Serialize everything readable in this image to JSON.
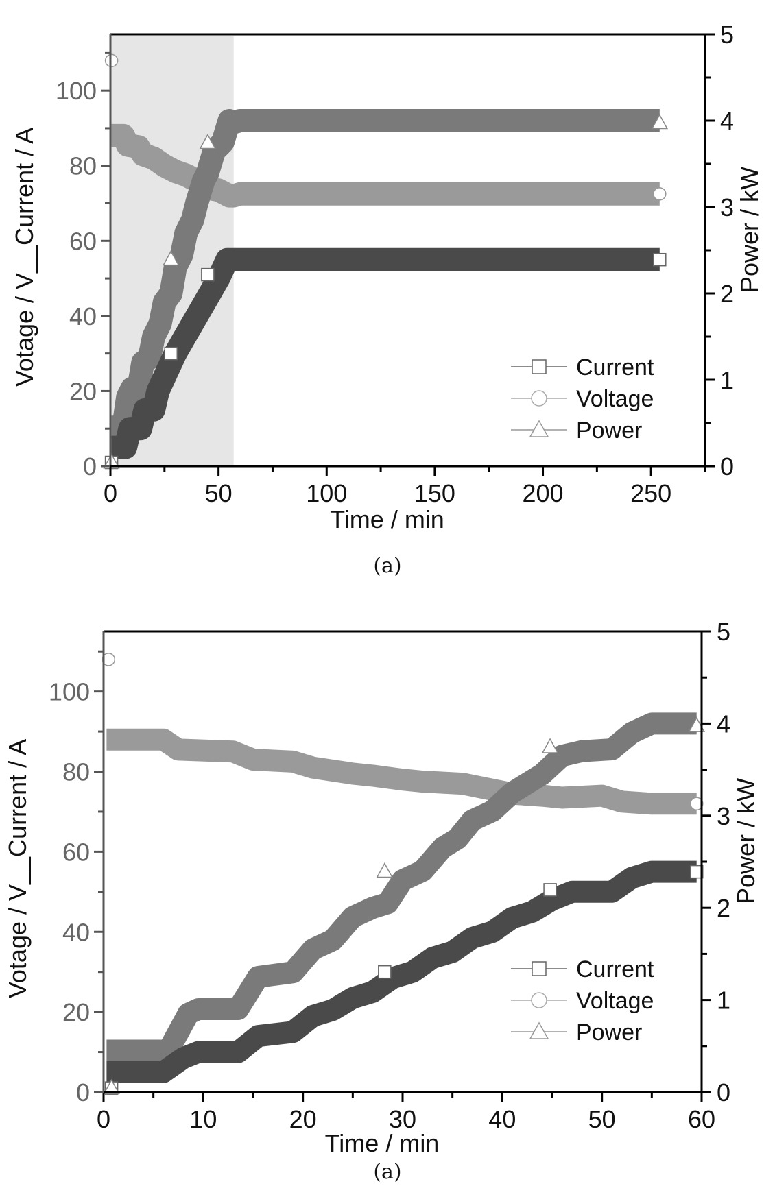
{
  "chart_data": [
    {
      "type": "line",
      "caption": "(a)",
      "xlabel": "Time / min",
      "ylabel_left": "Votage / V__Current / A",
      "ylabel_right": "Power / kW",
      "xlim": [
        0,
        275
      ],
      "ylim_left": [
        0,
        115
      ],
      "ylim_right": [
        0,
        5
      ],
      "x_ticks": [
        0,
        50,
        100,
        150,
        200,
        250
      ],
      "y_left_ticks": [
        0,
        20,
        40,
        60,
        80,
        100
      ],
      "y_right_ticks": [
        0,
        1,
        2,
        3,
        4,
        5
      ],
      "shaded_region": {
        "x": [
          0,
          57
        ],
        "color": "#e6e6e6"
      },
      "legend": {
        "position": "bottom-right",
        "entries": [
          "Current",
          "Voltage",
          "Power"
        ]
      },
      "series": [
        {
          "name": "Current",
          "axis": "left",
          "marker": "square",
          "color": "#4a4a4a",
          "x": [
            0.5,
            7,
            9,
            14,
            16,
            20,
            22,
            26,
            30,
            35,
            40,
            45,
            50,
            54,
            57,
            60,
            100,
            150,
            200,
            254
          ],
          "y": [
            5,
            5,
            10,
            10,
            15,
            15,
            20,
            25,
            30,
            35,
            40,
            45,
            50,
            55,
            55,
            55,
            55,
            55,
            55,
            55
          ],
          "marker_points": [
            {
              "x": 0.5,
              "y": 1
            },
            {
              "x": 28,
              "y": 30
            },
            {
              "x": 45,
              "y": 51
            },
            {
              "x": 254,
              "y": 55
            }
          ]
        },
        {
          "name": "Voltage",
          "axis": "left",
          "marker": "circle",
          "color": "#9a9a9a",
          "x": [
            0.5,
            6,
            8,
            13,
            15,
            20,
            25,
            30,
            35,
            40,
            45,
            50,
            55,
            57,
            60,
            100,
            150,
            200,
            254
          ],
          "y": [
            88,
            88,
            85.5,
            85,
            83,
            82,
            80,
            78.5,
            77.5,
            76,
            74,
            73.5,
            72,
            72,
            72.5,
            72.5,
            72.5,
            72.5,
            72.5
          ],
          "marker_points": [
            {
              "x": 0.5,
              "y": 108
            },
            {
              "x": 254,
              "y": 72.5
            }
          ]
        },
        {
          "name": "Power",
          "axis": "right",
          "marker": "triangle",
          "color": "#7a7a7a",
          "x": [
            0.5,
            6,
            8,
            10,
            13,
            15,
            18,
            20,
            23,
            25,
            28,
            30,
            33,
            35,
            38,
            40,
            43,
            45,
            48,
            50,
            52,
            55,
            57,
            60,
            100,
            150,
            200,
            254
          ],
          "y": [
            0.45,
            0.45,
            0.8,
            0.9,
            0.9,
            1.2,
            1.25,
            1.5,
            1.65,
            1.9,
            2.0,
            2.3,
            2.45,
            2.7,
            2.85,
            3.05,
            3.3,
            3.4,
            3.65,
            3.7,
            3.75,
            4.0,
            3.98,
            4.0,
            4.0,
            4.0,
            4.0,
            4.0
          ],
          "marker_points": [
            {
              "x": 0.5,
              "y": 0.05
            },
            {
              "x": 28,
              "y": 2.4
            },
            {
              "x": 45,
              "y": 3.75
            },
            {
              "x": 254,
              "y": 3.98
            }
          ]
        }
      ]
    },
    {
      "type": "line",
      "caption": "(a)",
      "xlabel": "Time / min",
      "ylabel_left": "Votage / V__Current / A",
      "ylabel_right": "Power / kW",
      "xlim": [
        0,
        60
      ],
      "ylim_left": [
        0,
        115
      ],
      "ylim_right": [
        0,
        5
      ],
      "x_ticks": [
        0,
        10,
        20,
        30,
        40,
        50,
        60
      ],
      "y_left_ticks": [
        0,
        20,
        40,
        60,
        80,
        100
      ],
      "y_right_ticks": [
        0,
        1,
        2,
        3,
        4,
        5
      ],
      "legend": {
        "position": "bottom-right",
        "entries": [
          "Current",
          "Voltage",
          "Power"
        ]
      },
      "series": [
        {
          "name": "Current",
          "axis": "left",
          "marker": "square",
          "color": "#4a4a4a",
          "x": [
            0.3,
            6,
            8,
            9.5,
            13.5,
            15.5,
            19,
            21,
            23,
            25,
            27,
            29,
            31,
            33,
            35,
            37,
            39,
            41,
            43,
            45,
            47,
            48,
            51,
            53,
            55,
            59.5
          ],
          "y": [
            5,
            5,
            8.5,
            10,
            10,
            14,
            15,
            19,
            20.5,
            23.5,
            25,
            28.5,
            30,
            33.5,
            35,
            38.5,
            40,
            43.5,
            45,
            48,
            50,
            50,
            50,
            53.5,
            55,
            55
          ],
          "marker_points": [
            {
              "x": 0.8,
              "y": 1
            },
            {
              "x": 28.2,
              "y": 30
            },
            {
              "x": 44.8,
              "y": 50.5
            },
            {
              "x": 59.5,
              "y": 55
            }
          ]
        },
        {
          "name": "Voltage",
          "axis": "left",
          "marker": "circle",
          "color": "#9a9a9a",
          "x": [
            0.3,
            6,
            7.5,
            13,
            15,
            19,
            21,
            25,
            27,
            30,
            32,
            36,
            38,
            41,
            44,
            46,
            50,
            52,
            55,
            59.5
          ],
          "y": [
            88,
            88,
            85.5,
            85,
            83,
            82.5,
            81,
            79.5,
            79,
            78,
            77.5,
            77,
            76,
            74.5,
            74,
            73.5,
            74,
            72.5,
            72,
            72
          ],
          "marker_points": [
            {
              "x": 0.5,
              "y": 108
            },
            {
              "x": 59.5,
              "y": 72
            }
          ]
        },
        {
          "name": "Power",
          "axis": "right",
          "marker": "triangle",
          "color": "#7a7a7a",
          "x": [
            0.3,
            6.5,
            8.5,
            9.5,
            13.5,
            15.5,
            19,
            21,
            23,
            25,
            27,
            28.5,
            30,
            32,
            34,
            35.5,
            37,
            39,
            41,
            42.5,
            44,
            46,
            48,
            51,
            53,
            55,
            59.5
          ],
          "y": [
            0.45,
            0.45,
            0.85,
            0.9,
            0.9,
            1.25,
            1.3,
            1.55,
            1.65,
            1.9,
            2.0,
            2.05,
            2.3,
            2.4,
            2.65,
            2.75,
            2.95,
            3.05,
            3.25,
            3.35,
            3.45,
            3.65,
            3.7,
            3.72,
            3.9,
            4.0,
            4.0
          ],
          "marker_points": [
            {
              "x": 0.8,
              "y": 0.05
            },
            {
              "x": 28.2,
              "y": 2.4
            },
            {
              "x": 44.8,
              "y": 3.75
            },
            {
              "x": 59.5,
              "y": 3.98
            }
          ]
        }
      ]
    }
  ]
}
